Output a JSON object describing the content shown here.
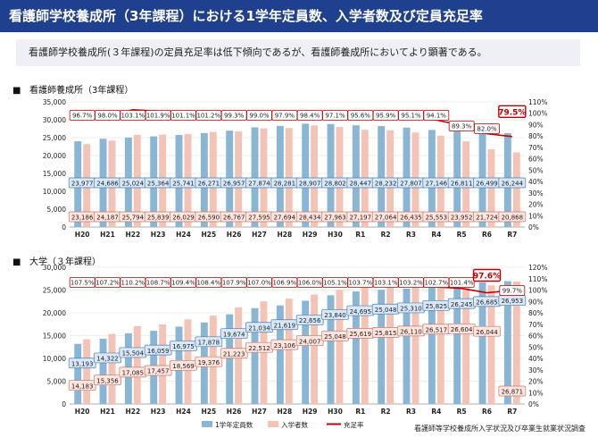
{
  "header": {
    "title": "看護師学校養成所（3年課程）における1学年定員数、入学者数及び定員充足率"
  },
  "summary": "看護師学校養成所(３年課程)の定員充足率は低下傾向であるが、看護師養成所においてより顕著である。",
  "footer": {
    "source": "看護師等学校養成所入学状況及び卒業生就業状況調査"
  },
  "colors": {
    "capacity": "#8ab6d6",
    "enrolled": "#f3c3b5",
    "rate": "#c00000",
    "title_bg": "#1f3f8f"
  },
  "chart_data": [
    {
      "type": "bar",
      "title": "看護師養成所（3年課程）",
      "categories": [
        "H20",
        "H21",
        "H22",
        "H23",
        "H24",
        "H25",
        "H26",
        "H27",
        "H28",
        "H29",
        "H30",
        "R1",
        "R2",
        "R3",
        "R4",
        "R5",
        "R6",
        "R7"
      ],
      "ylim": [
        0,
        35000
      ],
      "y_ticks": [
        "0",
        "5,000",
        "10,000",
        "15,000",
        "20,000",
        "25,000",
        "30,000",
        "35,000"
      ],
      "y2lim": [
        0,
        110
      ],
      "y2_ticks": [
        "0%",
        "10%",
        "20%",
        "30%",
        "40%",
        "50%",
        "60%",
        "70%",
        "80%",
        "90%",
        "100%",
        "110%"
      ],
      "series": [
        {
          "name": "1学年定員数",
          "type": "bar",
          "values": [
            23977,
            24686,
            25024,
            25364,
            25741,
            26271,
            26957,
            27874,
            28281,
            28907,
            28802,
            28447,
            28232,
            27807,
            27146,
            26811,
            26499,
            26244
          ],
          "labels": [
            "23,977",
            "24,686",
            "25,024",
            "25,364",
            "25,741",
            "26,271",
            "26,957",
            "27,874",
            "28,281",
            "28,907",
            "28,802",
            "28,447",
            "28,232",
            "27,807",
            "27,146",
            "26,811",
            "26,499",
            "26,244"
          ]
        },
        {
          "name": "入学者数",
          "type": "bar",
          "values": [
            23186,
            24187,
            25794,
            25839,
            26029,
            26590,
            26767,
            27595,
            27694,
            28434,
            27963,
            27197,
            27064,
            26435,
            25553,
            23952,
            21724,
            20868
          ],
          "labels": [
            "23,186",
            "24,187",
            "25,794",
            "25,839",
            "26,029",
            "26,590",
            "26,767",
            "27,595",
            "27,694",
            "28,434",
            "27,963",
            "27,197",
            "27,064",
            "26,435",
            "25,553",
            "23,952",
            "21,724",
            "20,868"
          ]
        },
        {
          "name": "充足率",
          "type": "line",
          "values": [
            96.7,
            98.0,
            103.1,
            101.9,
            101.1,
            101.2,
            99.3,
            99.0,
            97.9,
            98.4,
            97.1,
            95.6,
            95.9,
            95.1,
            94.1,
            89.3,
            82.0,
            79.5
          ],
          "labels": [
            "96.7%",
            "98.0%",
            "103.1%",
            "101.9%",
            "101.1%",
            "101.2%",
            "99.3%",
            "99.0%",
            "97.9%",
            "98.4%",
            "97.1%",
            "95.6%",
            "95.9%",
            "95.1%",
            "94.1%",
            "89.3%",
            "82.0%",
            "79.5%"
          ]
        }
      ]
    },
    {
      "type": "bar",
      "title": "大学（３年課程）",
      "categories": [
        "H20",
        "H21",
        "H22",
        "H23",
        "H24",
        "H25",
        "H26",
        "H27",
        "H28",
        "H29",
        "H30",
        "R1",
        "R2",
        "R3",
        "R4",
        "R5",
        "R6",
        "R7"
      ],
      "ylim": [
        0,
        30000
      ],
      "y_ticks": [
        "0",
        "5,000",
        "10,000",
        "15,000",
        "20,000",
        "25,000",
        "30,000"
      ],
      "y2lim": [
        0,
        120
      ],
      "y2_ticks": [
        "0%",
        "10%",
        "20%",
        "30%",
        "40%",
        "50%",
        "60%",
        "70%",
        "80%",
        "90%",
        "100%",
        "110%",
        "120%"
      ],
      "series": [
        {
          "name": "1学年定員数",
          "type": "bar",
          "values": [
            13193,
            14322,
            15504,
            16059,
            16975,
            17878,
            19674,
            21034,
            21619,
            22656,
            23840,
            24695,
            25048,
            25310,
            25825,
            26245,
            26685,
            26953
          ],
          "labels": [
            "13,193",
            "14,322",
            "15,504",
            "16,059",
            "16,975",
            "17,878",
            "19,674",
            "21,034",
            "21,619",
            "22,656",
            "23,840",
            "24,695",
            "25,048",
            "25,310",
            "25,825",
            "26,245",
            "26,685",
            "26,953"
          ]
        },
        {
          "name": "入学者数",
          "type": "bar",
          "values": [
            14183,
            15356,
            17085,
            17457,
            18569,
            19376,
            21223,
            22512,
            23106,
            24007,
            25048,
            25619,
            25815,
            26110,
            26517,
            26604,
            26044,
            26871
          ],
          "labels": [
            "14,183",
            "15,356",
            "17,085",
            "17,457",
            "18,569",
            "19,376",
            "21,223",
            "22,512",
            "23,106",
            "24,007",
            "25,048",
            "25,619",
            "25,815",
            "26,110",
            "26,517",
            "26,604",
            "26,044",
            "26,871"
          ]
        },
        {
          "name": "充足率",
          "type": "line",
          "values": [
            107.5,
            107.2,
            110.2,
            108.7,
            109.4,
            108.4,
            107.9,
            107.0,
            106.9,
            106.0,
            105.1,
            103.7,
            103.1,
            103.2,
            102.7,
            101.4,
            97.6,
            99.7
          ],
          "labels": [
            "107.5%",
            "107.2%",
            "110.2%",
            "108.7%",
            "109.4%",
            "108.4%",
            "107.9%",
            "107.0%",
            "106.9%",
            "106.0%",
            "105.1%",
            "103.7%",
            "103.1%",
            "103.2%",
            "102.7%",
            "101.4%",
            "97.6%",
            "99.7%"
          ]
        }
      ]
    }
  ]
}
